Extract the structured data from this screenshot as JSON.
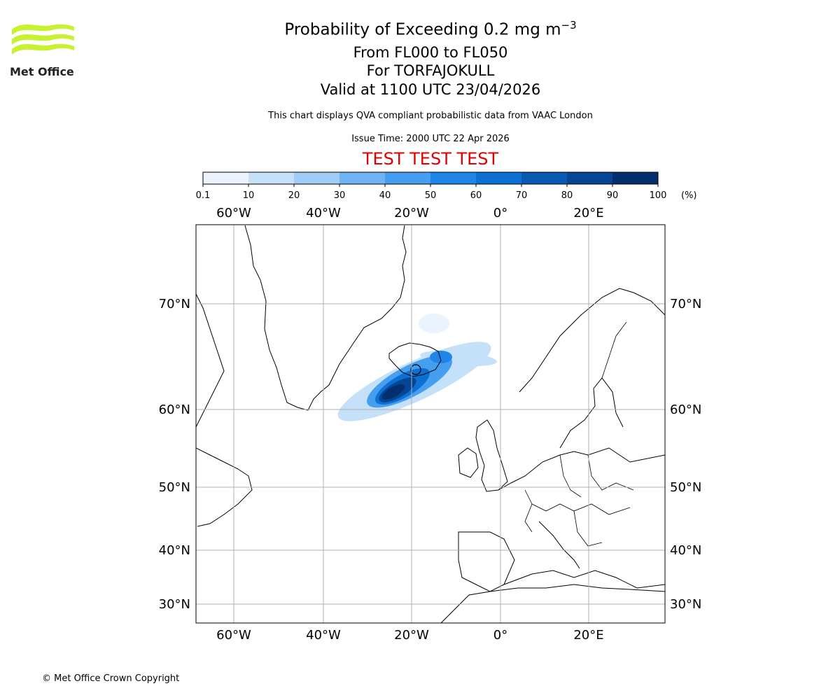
{
  "logo": {
    "brand_text": "Met Office",
    "accent_color": "#c6f22f"
  },
  "header": {
    "title_prefix": "Probability of Exceeding 0.2 mg m",
    "title_exponent": "−3",
    "flight_levels": "From FL000 to FL050",
    "volcano": "For TORFAJOKULL",
    "valid_time": "Valid at 1100 UTC 23/04/2026",
    "description": "This chart displays QVA compliant probabilistic data from VAAC London",
    "issue_time": "Issue Time: 2000 UTC 22 Apr 2026",
    "test_banner": "TEST TEST TEST"
  },
  "colorbar": {
    "unit_label": "(%)",
    "ticks": [
      "0.1",
      "10",
      "20",
      "30",
      "40",
      "50",
      "60",
      "70",
      "80",
      "90",
      "100"
    ],
    "colors": [
      "#eaf3fe",
      "#c5e1fa",
      "#9fcdf8",
      "#6fb3f5",
      "#459ef0",
      "#1f86e8",
      "#0c6fd2",
      "#0759b2",
      "#054593",
      "#032f6e"
    ]
  },
  "map": {
    "lon_labels": [
      "60°W",
      "40°W",
      "20°W",
      "0°",
      "20°E"
    ],
    "lat_labels": [
      "70°N",
      "60°N",
      "50°N",
      "40°N",
      "30°N"
    ],
    "grid_color": "#b0b0b0",
    "coast_color": "#000000"
  },
  "footer": {
    "copyright": "© Met Office Crown Copyright"
  }
}
